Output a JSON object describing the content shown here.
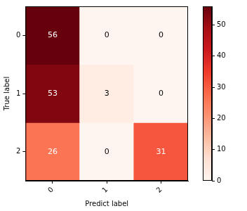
{
  "chart_data": {
    "type": "heatmap",
    "xlabel": "Predict label",
    "ylabel": "True label",
    "x_categories": [
      "0",
      "1",
      "2"
    ],
    "y_categories": [
      "0",
      "1",
      "2"
    ],
    "cells": [
      [
        56,
        0,
        0
      ],
      [
        53,
        3,
        0
      ],
      [
        26,
        0,
        31
      ]
    ],
    "data_labels": true,
    "colorbar": {
      "range": [
        0,
        56
      ],
      "ticks": [
        0,
        10,
        20,
        30,
        40,
        50
      ]
    }
  }
}
